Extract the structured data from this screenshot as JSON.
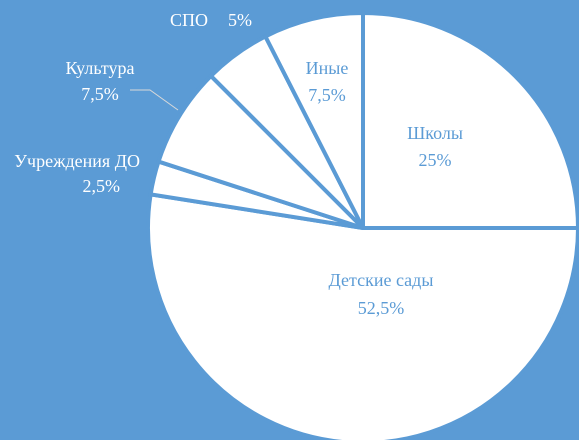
{
  "chart_data": {
    "type": "pie",
    "categories": [
      "Школы",
      "Детские сады",
      "Учреждения ДО",
      "Культура",
      "СПО",
      "Иные"
    ],
    "values": [
      25,
      52.5,
      2.5,
      7.5,
      5,
      7.5
    ],
    "value_labels": [
      "25%",
      "52,5%",
      "2,5%",
      "7,5%",
      "5%",
      "7,5%"
    ],
    "color": "#ffffff",
    "background": "#5b9bd5"
  }
}
